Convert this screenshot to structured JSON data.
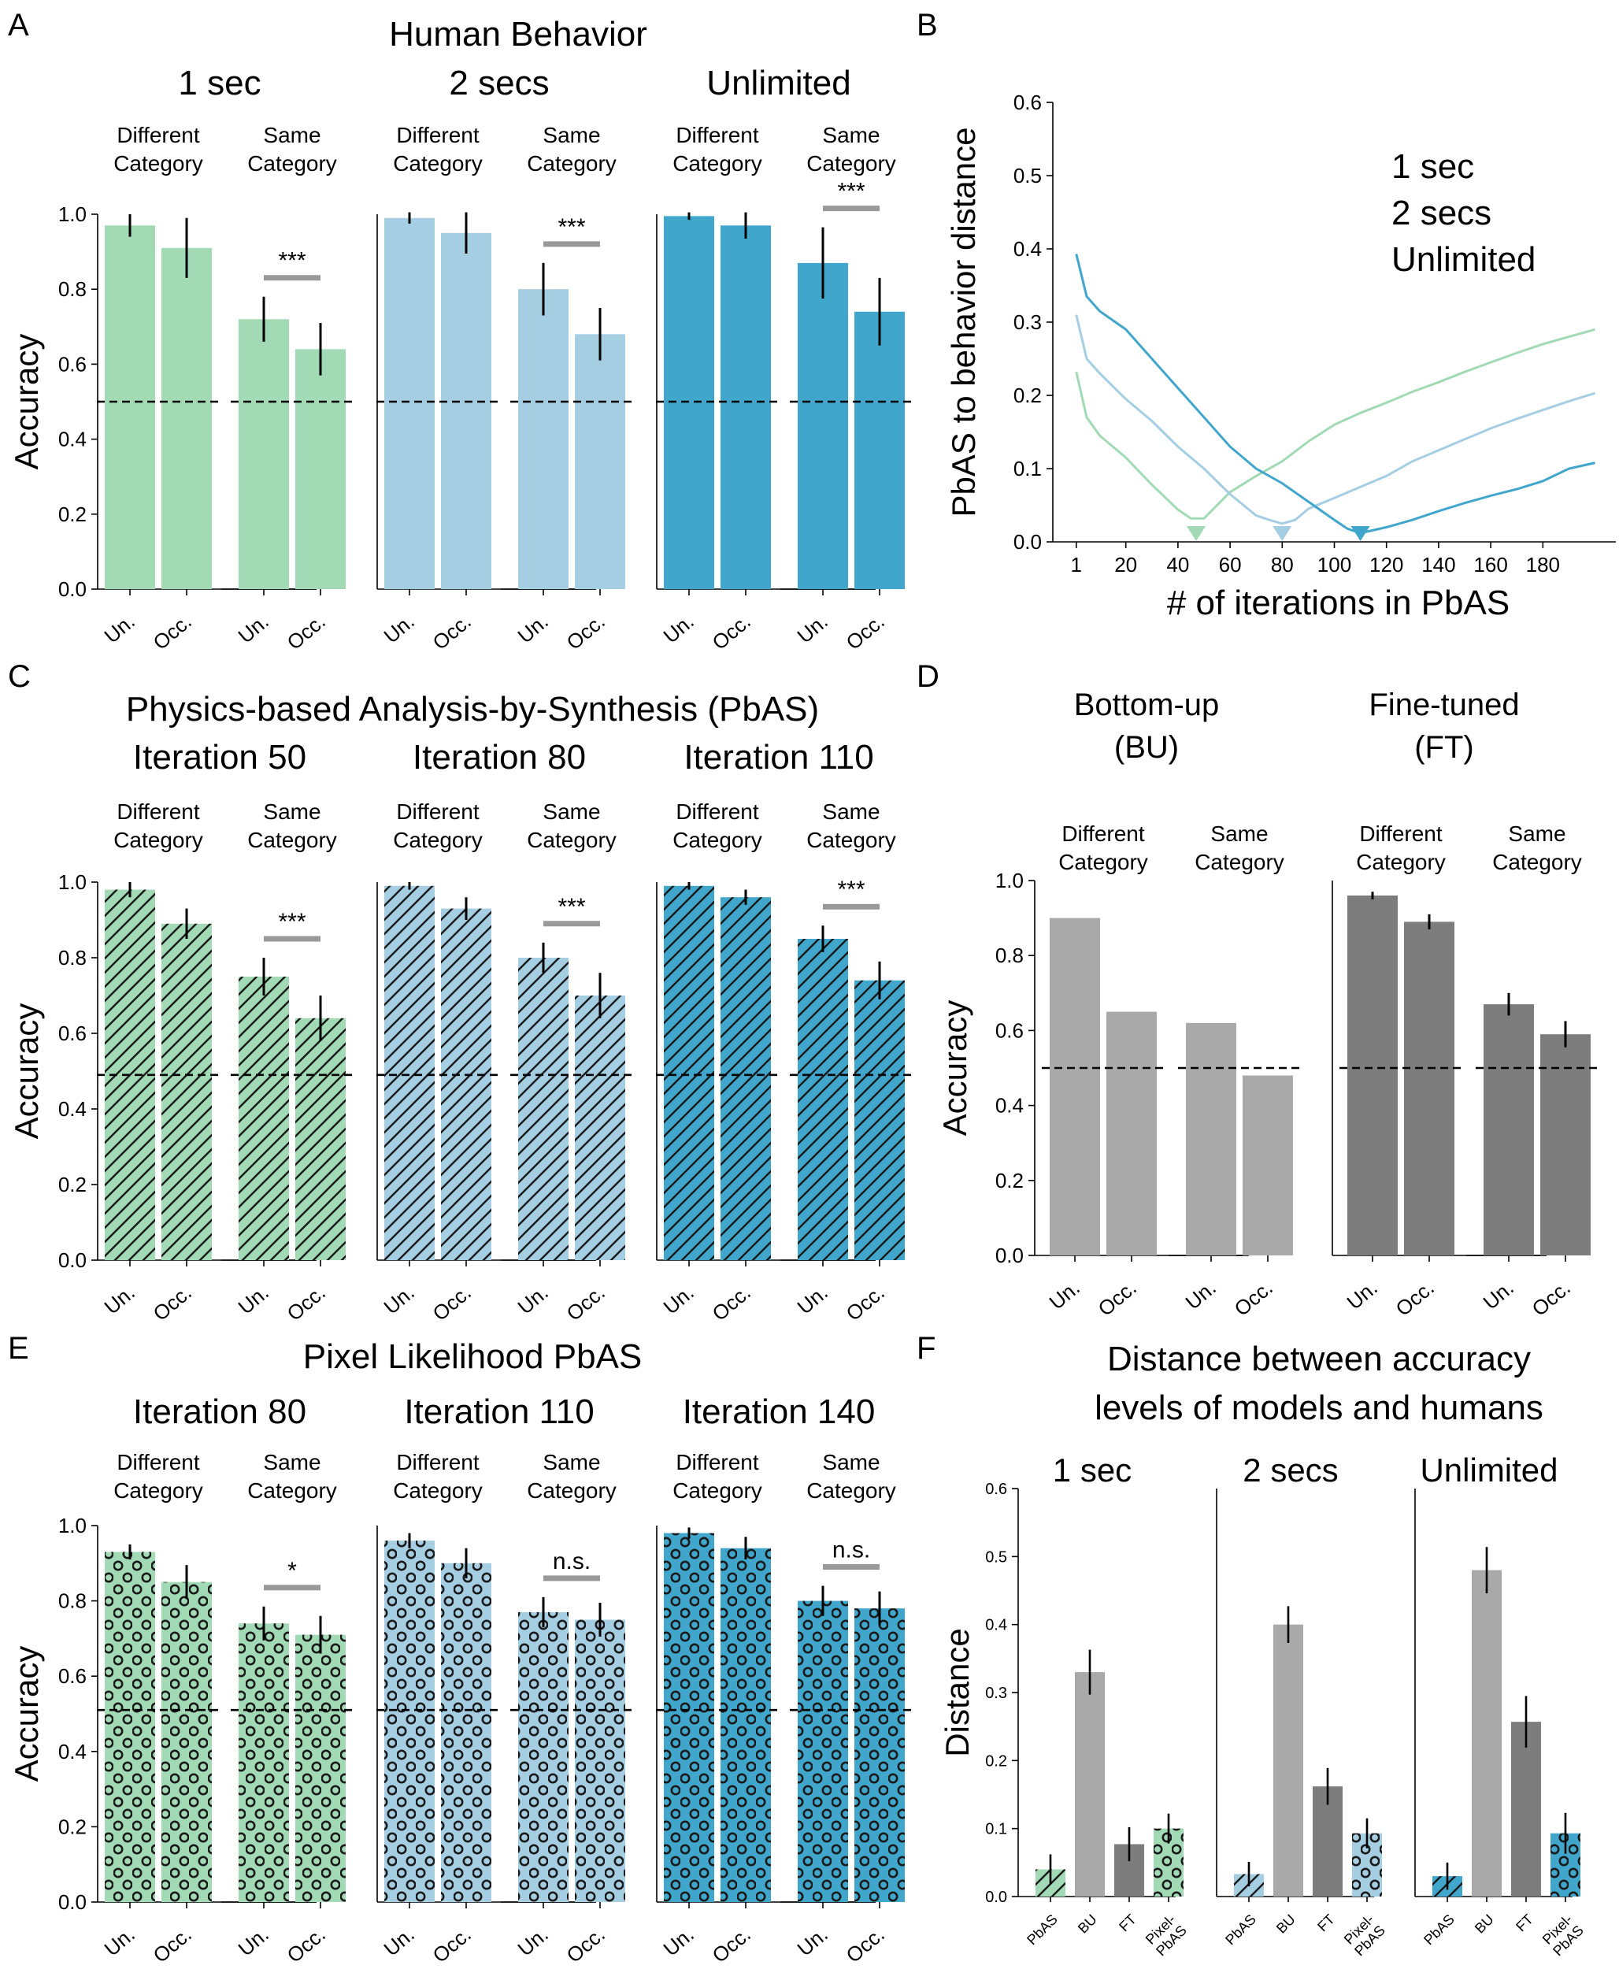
{
  "colors": {
    "green": "#a1dab4",
    "light_blue": "#a6cee3",
    "blue": "#41a6cc",
    "grey_light": "#a9a9a9",
    "grey_dark": "#7d7d7d",
    "green_text": "#a1dab4",
    "teal_text": "#3bb4c8",
    "darkblue_text": "#2064ac",
    "sig_bar": "#999999"
  },
  "chart_data": [
    {
      "id": "A",
      "type": "bar",
      "panel_letter": "A",
      "title": "Human Behavior",
      "ylabel": "Accuracy",
      "ylim": [
        0,
        1
      ],
      "yticks": [
        "0.0",
        "0.2",
        "0.4",
        "0.6",
        "0.8",
        "1.0"
      ],
      "chance": 0.5,
      "pattern": "none",
      "x_tick_labels": [
        "Un.",
        "Occ."
      ],
      "category_labels": [
        [
          "Different",
          "Category"
        ],
        [
          "Same",
          "Category"
        ]
      ],
      "groups": [
        {
          "label": "1 sec",
          "label_color": "green_text",
          "color": "green",
          "subgroups": [
            {
              "values": [
                0.97,
                0.91
              ],
              "errors": [
                0.03,
                0.08
              ],
              "sig": ""
            },
            {
              "values": [
                0.72,
                0.64
              ],
              "errors": [
                0.06,
                0.07
              ],
              "sig": "***"
            }
          ]
        },
        {
          "label": "2 secs",
          "label_color": "teal_text",
          "color": "light_blue",
          "subgroups": [
            {
              "values": [
                0.99,
                0.95
              ],
              "errors": [
                0.015,
                0.055
              ],
              "sig": ""
            },
            {
              "values": [
                0.8,
                0.68
              ],
              "errors": [
                0.07,
                0.07
              ],
              "sig": "***"
            }
          ]
        },
        {
          "label": "Unlimited",
          "label_color": "darkblue_text",
          "color": "blue",
          "subgroups": [
            {
              "values": [
                0.995,
                0.97
              ],
              "errors": [
                0.01,
                0.035
              ],
              "sig": ""
            },
            {
              "values": [
                0.87,
                0.74
              ],
              "errors": [
                0.095,
                0.09
              ],
              "sig": "***"
            }
          ]
        }
      ]
    },
    {
      "id": "B",
      "type": "line",
      "panel_letter": "B",
      "ylabel": "PbAS to behavior distance",
      "xlabel": "# of iterations in PbAS",
      "xlim": [
        -8,
        208
      ],
      "ylim": [
        0,
        0.6
      ],
      "xticks": [
        1,
        20,
        40,
        60,
        80,
        100,
        120,
        140,
        160,
        180
      ],
      "yticks": [
        0.0,
        0.1,
        0.2,
        0.3,
        0.4,
        0.5,
        0.6
      ],
      "ytick_labels": [
        "0.0",
        "0.1",
        "0.2",
        "0.3",
        "0.4",
        "0.5",
        "0.6"
      ],
      "legend": [
        "1 sec",
        "2 secs",
        "Unlimited"
      ],
      "series": [
        {
          "name": "1 sec",
          "color": "green",
          "x": [
            1,
            5,
            10,
            20,
            30,
            40,
            45,
            50,
            55,
            60,
            70,
            80,
            90,
            100,
            110,
            120,
            130,
            140,
            150,
            160,
            170,
            180,
            190,
            200
          ],
          "y": [
            0.232,
            0.17,
            0.145,
            0.115,
            0.078,
            0.044,
            0.032,
            0.032,
            0.05,
            0.068,
            0.09,
            0.11,
            0.137,
            0.16,
            0.176,
            0.19,
            0.205,
            0.218,
            0.232,
            0.245,
            0.258,
            0.27,
            0.28,
            0.29
          ],
          "marker_x": 47
        },
        {
          "name": "2 secs",
          "color": "light_blue",
          "x": [
            1,
            5,
            10,
            20,
            30,
            40,
            50,
            60,
            70,
            75,
            80,
            85,
            90,
            100,
            110,
            120,
            130,
            140,
            150,
            160,
            170,
            180,
            190,
            200
          ],
          "y": [
            0.31,
            0.25,
            0.23,
            0.195,
            0.165,
            0.13,
            0.1,
            0.065,
            0.036,
            0.03,
            0.025,
            0.03,
            0.045,
            0.06,
            0.075,
            0.09,
            0.11,
            0.125,
            0.14,
            0.155,
            0.168,
            0.18,
            0.192,
            0.203
          ],
          "marker_x": 80
        },
        {
          "name": "Unlimited",
          "color": "blue",
          "x": [
            1,
            5,
            10,
            20,
            30,
            40,
            50,
            60,
            70,
            80,
            90,
            100,
            105,
            110,
            115,
            120,
            130,
            140,
            150,
            160,
            170,
            180,
            190,
            200
          ],
          "y": [
            0.393,
            0.335,
            0.315,
            0.29,
            0.25,
            0.21,
            0.17,
            0.13,
            0.1,
            0.08,
            0.055,
            0.03,
            0.018,
            0.012,
            0.016,
            0.02,
            0.03,
            0.042,
            0.053,
            0.063,
            0.072,
            0.083,
            0.1,
            0.108
          ],
          "marker_x": 110
        }
      ]
    },
    {
      "id": "C",
      "type": "bar",
      "panel_letter": "C",
      "title": "Physics-based Analysis-by-Synthesis (PbAS)",
      "ylabel": "Accuracy",
      "ylim": [
        0,
        1
      ],
      "yticks": [
        "0.0",
        "0.2",
        "0.4",
        "0.6",
        "0.8",
        "1.0"
      ],
      "chance": 0.49,
      "pattern": "hatch",
      "x_tick_labels": [
        "Un.",
        "Occ."
      ],
      "category_labels": [
        [
          "Different",
          "Category"
        ],
        [
          "Same",
          "Category"
        ]
      ],
      "groups": [
        {
          "label": "Iteration 50",
          "label_color": "green_text",
          "color": "green",
          "subgroups": [
            {
              "values": [
                0.98,
                0.89
              ],
              "errors": [
                0.02,
                0.04
              ],
              "sig": ""
            },
            {
              "values": [
                0.75,
                0.64
              ],
              "errors": [
                0.05,
                0.06
              ],
              "sig": "***"
            }
          ]
        },
        {
          "label": "Iteration 80",
          "label_color": "teal_text",
          "color": "light_blue",
          "subgroups": [
            {
              "values": [
                0.99,
                0.93
              ],
              "errors": [
                0.01,
                0.03
              ],
              "sig": ""
            },
            {
              "values": [
                0.8,
                0.7
              ],
              "errors": [
                0.04,
                0.06
              ],
              "sig": "***"
            }
          ]
        },
        {
          "label": "Iteration 110",
          "label_color": "darkblue_text",
          "color": "blue",
          "subgroups": [
            {
              "values": [
                0.99,
                0.96
              ],
              "errors": [
                0.01,
                0.02
              ],
              "sig": ""
            },
            {
              "values": [
                0.85,
                0.74
              ],
              "errors": [
                0.035,
                0.05
              ],
              "sig": "***"
            }
          ]
        }
      ]
    },
    {
      "id": "D",
      "type": "bar",
      "panel_letter": "D",
      "ylabel": "Accuracy",
      "ylim": [
        0,
        1
      ],
      "yticks": [
        "0.0",
        "0.2",
        "0.4",
        "0.6",
        "0.8",
        "1.0"
      ],
      "chance": 0.5,
      "pattern": "none",
      "x_tick_labels": [
        "Un.",
        "Occ."
      ],
      "category_labels": [
        [
          "Different",
          "Category"
        ],
        [
          "Same",
          "Category"
        ]
      ],
      "groups": [
        {
          "label": [
            "Bottom-up",
            "(BU)"
          ],
          "color": "grey_light",
          "subgroups": [
            {
              "values": [
                0.9,
                0.65
              ],
              "errors": [
                0,
                0
              ],
              "sig": ""
            },
            {
              "values": [
                0.62,
                0.48
              ],
              "errors": [
                0,
                0
              ],
              "sig": ""
            }
          ]
        },
        {
          "label": [
            "Fine-tuned",
            "(FT)"
          ],
          "color": "grey_dark",
          "subgroups": [
            {
              "values": [
                0.96,
                0.89
              ],
              "errors": [
                0.01,
                0.02
              ],
              "sig": ""
            },
            {
              "values": [
                0.67,
                0.59
              ],
              "errors": [
                0.03,
                0.035
              ],
              "sig": ""
            }
          ]
        }
      ]
    },
    {
      "id": "E",
      "type": "bar",
      "panel_letter": "E",
      "title": "Pixel Likelihood PbAS",
      "ylabel": "Accuracy",
      "ylim": [
        0,
        1
      ],
      "yticks": [
        "0.0",
        "0.2",
        "0.4",
        "0.6",
        "0.8",
        "1.0"
      ],
      "chance": 0.51,
      "pattern": "circles",
      "x_tick_labels": [
        "Un.",
        "Occ."
      ],
      "category_labels": [
        [
          "Different",
          "Category"
        ],
        [
          "Same",
          "Category"
        ]
      ],
      "groups": [
        {
          "label": "Iteration 80",
          "label_color": "green_text",
          "color": "green",
          "subgroups": [
            {
              "values": [
                0.93,
                0.85
              ],
              "errors": [
                0.02,
                0.045
              ],
              "sig": ""
            },
            {
              "values": [
                0.74,
                0.71
              ],
              "errors": [
                0.045,
                0.05
              ],
              "sig": "*"
            }
          ]
        },
        {
          "label": "Iteration 110",
          "label_color": "light_blue",
          "color": "light_blue",
          "subgroups": [
            {
              "values": [
                0.96,
                0.9
              ],
              "errors": [
                0.02,
                0.04
              ],
              "sig": ""
            },
            {
              "values": [
                0.77,
                0.75
              ],
              "errors": [
                0.04,
                0.045
              ],
              "sig": "n.s."
            }
          ]
        },
        {
          "label": "Iteration 140",
          "label_color": "blue",
          "color": "blue",
          "subgroups": [
            {
              "values": [
                0.98,
                0.94
              ],
              "errors": [
                0.015,
                0.03
              ],
              "sig": ""
            },
            {
              "values": [
                0.8,
                0.78
              ],
              "errors": [
                0.04,
                0.045
              ],
              "sig": "n.s."
            }
          ]
        }
      ]
    },
    {
      "id": "F",
      "type": "bar",
      "panel_letter": "F",
      "title": [
        "Distance between accuracy",
        "levels of models and humans"
      ],
      "ylabel": "Distance",
      "ylim": [
        0,
        0.6
      ],
      "yticks": [
        "0.0",
        "0.1",
        "0.2",
        "0.3",
        "0.4",
        "0.5",
        "0.6"
      ],
      "groups": [
        {
          "label": "1 sec",
          "bars": [
            {
              "name": "PbAS",
              "value": 0.04,
              "error": 0.022,
              "color": "green",
              "pattern": "hatch"
            },
            {
              "name": "BU",
              "value": 0.33,
              "error": 0.033,
              "color": "grey_light",
              "pattern": "none"
            },
            {
              "name": "FT",
              "value": 0.077,
              "error": 0.025,
              "color": "grey_dark",
              "pattern": "none"
            },
            {
              "name": [
                "Pixel-",
                "PbAS"
              ],
              "value": 0.1,
              "error": 0.022,
              "color": "green",
              "pattern": "circles"
            }
          ]
        },
        {
          "label": "2 secs",
          "bars": [
            {
              "name": "PbAS",
              "value": 0.033,
              "error": 0.018,
              "color": "light_blue",
              "pattern": "hatch"
            },
            {
              "name": "BU",
              "value": 0.4,
              "error": 0.027,
              "color": "grey_light",
              "pattern": "none"
            },
            {
              "name": "FT",
              "value": 0.162,
              "error": 0.027,
              "color": "grey_dark",
              "pattern": "none"
            },
            {
              "name": [
                "Pixel-",
                "PbAS"
              ],
              "value": 0.093,
              "error": 0.022,
              "color": "light_blue",
              "pattern": "circles"
            }
          ]
        },
        {
          "label": "Unlimited",
          "bars": [
            {
              "name": "PbAS",
              "value": 0.03,
              "error": 0.02,
              "color": "blue",
              "pattern": "hatch"
            },
            {
              "name": "BU",
              "value": 0.48,
              "error": 0.034,
              "color": "grey_light",
              "pattern": "none"
            },
            {
              "name": "FT",
              "value": 0.257,
              "error": 0.038,
              "color": "grey_dark",
              "pattern": "none"
            },
            {
              "name": [
                "Pixel-",
                "PbAS"
              ],
              "value": 0.093,
              "error": 0.03,
              "color": "blue",
              "pattern": "circles"
            }
          ]
        }
      ]
    }
  ]
}
